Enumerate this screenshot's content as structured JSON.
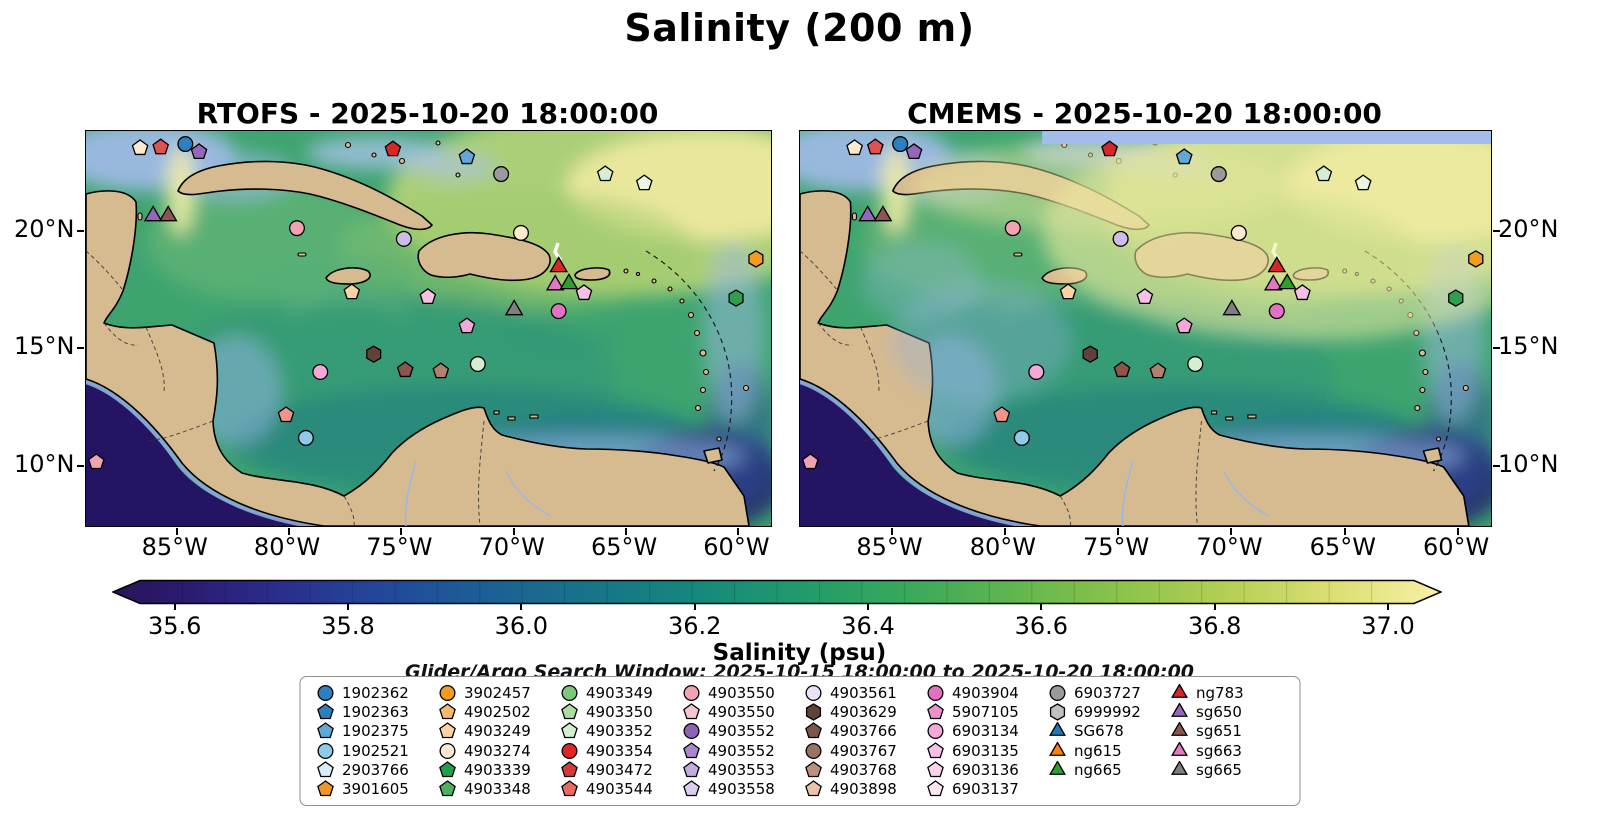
{
  "title": "Salinity (200 m)",
  "panels": [
    {
      "title": "RTOFS - 2025-10-20 18:00:00",
      "model": "RTOFS"
    },
    {
      "title": "CMEMS - 2025-10-20 18:00:00",
      "model": "CMEMS"
    }
  ],
  "axes": {
    "xticks": [
      {
        "label": "85°W",
        "f": 0.131
      },
      {
        "label": "80°W",
        "f": 0.295
      },
      {
        "label": "75°W",
        "f": 0.459
      },
      {
        "label": "70°W",
        "f": 0.623
      },
      {
        "label": "65°W",
        "f": 0.787
      },
      {
        "label": "60°W",
        "f": 0.951
      }
    ],
    "yticks": [
      {
        "label": "20°N",
        "f": 0.25
      },
      {
        "label": "15°N",
        "f": 0.548
      },
      {
        "label": "10°N",
        "f": 0.845
      }
    ]
  },
  "colorbar": {
    "label": "Salinity (psu)",
    "min": 35.56,
    "max": 37.03,
    "tick_labels": [
      "35.6",
      "35.8",
      "36.0",
      "36.2",
      "36.4",
      "36.6",
      "36.8",
      "37.0"
    ],
    "gradient": [
      {
        "o": 0.0,
        "c": "#2a1458"
      },
      {
        "o": 0.05,
        "c": "#2b1a6e"
      },
      {
        "o": 0.13,
        "c": "#2a2f8e"
      },
      {
        "o": 0.2,
        "c": "#22479b"
      },
      {
        "o": 0.28,
        "c": "#1c5f95"
      },
      {
        "o": 0.36,
        "c": "#177489"
      },
      {
        "o": 0.44,
        "c": "#15887c"
      },
      {
        "o": 0.52,
        "c": "#219b6b"
      },
      {
        "o": 0.6,
        "c": "#3aa95b"
      },
      {
        "o": 0.68,
        "c": "#61b64e"
      },
      {
        "o": 0.76,
        "c": "#8cc34a"
      },
      {
        "o": 0.84,
        "c": "#b5cf55"
      },
      {
        "o": 0.92,
        "c": "#dcdf72"
      },
      {
        "o": 1.0,
        "c": "#f8f0a8"
      }
    ]
  },
  "search_window_text": "Glider/Argo Search Window: 2025-10-15 18:00:00 to 2025-10-20 18:00:00",
  "legend": {
    "columns": [
      [
        {
          "label": "1902362",
          "shape": "circle",
          "color": "#2d7fc0"
        },
        {
          "label": "1902363",
          "shape": "pentagon",
          "color": "#2d7fc0"
        },
        {
          "label": "1902375",
          "shape": "pentagon",
          "color": "#62a8d6"
        },
        {
          "label": "1902521",
          "shape": "circle",
          "color": "#8fcae8"
        },
        {
          "label": "2903766",
          "shape": "pentagon",
          "color": "#d8edf8"
        },
        {
          "label": "3901605",
          "shape": "pentagon",
          "color": "#f0952c"
        }
      ],
      [
        {
          "label": "3902457",
          "shape": "circle",
          "color": "#f39c1f"
        },
        {
          "label": "4902502",
          "shape": "pentagon",
          "color": "#f6b96e"
        },
        {
          "label": "4903249",
          "shape": "pentagon",
          "color": "#f9d4a0"
        },
        {
          "label": "4903274",
          "shape": "circle",
          "color": "#fcead0"
        },
        {
          "label": "4903339",
          "shape": "pentagon",
          "color": "#1f9e4b"
        },
        {
          "label": "4903348",
          "shape": "pentagon",
          "color": "#4fae63"
        }
      ],
      [
        {
          "label": "4903349",
          "shape": "circle",
          "color": "#7bc87d"
        },
        {
          "label": "4903350",
          "shape": "pentagon",
          "color": "#aadca4"
        },
        {
          "label": "4903352",
          "shape": "pentagon",
          "color": "#d4efcf"
        },
        {
          "label": "4903354",
          "shape": "circle",
          "color": "#e02427"
        },
        {
          "label": "4903472",
          "shape": "pentagon",
          "color": "#d43a3c"
        },
        {
          "label": "4903544",
          "shape": "pentagon",
          "color": "#e96a60"
        }
      ],
      [
        {
          "label": "4903550",
          "shape": "circle",
          "color": "#f2a3b3"
        },
        {
          "label": "4903550",
          "shape": "pentagon",
          "color": "#f7c6d3"
        },
        {
          "label": "4903552",
          "shape": "circle",
          "color": "#8e63b5"
        },
        {
          "label": "4903552",
          "shape": "pentagon",
          "color": "#a988cb"
        },
        {
          "label": "4903553",
          "shape": "pentagon",
          "color": "#c3abdd"
        },
        {
          "label": "4903558",
          "shape": "pentagon",
          "color": "#dccdee"
        }
      ],
      [
        {
          "label": "4903561",
          "shape": "circle",
          "color": "#ece2f6"
        },
        {
          "label": "4903629",
          "shape": "hexagon",
          "color": "#5f4339"
        },
        {
          "label": "4903766",
          "shape": "pentagon",
          "color": "#7d564a"
        },
        {
          "label": "4903767",
          "shape": "circle",
          "color": "#9b7162"
        },
        {
          "label": "4903768",
          "shape": "pentagon",
          "color": "#c0907e"
        },
        {
          "label": "4903898",
          "shape": "pentagon",
          "color": "#eac3ab"
        }
      ],
      [
        {
          "label": "4903904",
          "shape": "circle",
          "color": "#e171c1"
        },
        {
          "label": "5907105",
          "shape": "pentagon",
          "color": "#ee8fd0"
        },
        {
          "label": "6903134",
          "shape": "circle",
          "color": "#f4a8da"
        },
        {
          "label": "6903135",
          "shape": "pentagon",
          "color": "#f8c0e4"
        },
        {
          "label": "6903136",
          "shape": "pentagon",
          "color": "#fbd4ec"
        },
        {
          "label": "6903137",
          "shape": "pentagon",
          "color": "#fde6f4"
        }
      ],
      [
        {
          "label": "6903727",
          "shape": "circle",
          "color": "#9a9a9a"
        },
        {
          "label": "6999992",
          "shape": "hexagon",
          "color": "#c0c0c0"
        },
        {
          "label": "SG678",
          "shape": "triangle",
          "color": "#1f77b4"
        },
        {
          "label": "ng615",
          "shape": "triangle",
          "color": "#ff7f0e"
        },
        {
          "label": "ng665",
          "shape": "triangle",
          "color": "#2ca02c"
        }
      ],
      [
        {
          "label": "ng783",
          "shape": "triangle",
          "color": "#d62728"
        },
        {
          "label": "sg650",
          "shape": "triangle",
          "color": "#9467bd"
        },
        {
          "label": "sg651",
          "shape": "triangle",
          "color": "#8c564b"
        },
        {
          "label": "sg663",
          "shape": "triangle",
          "color": "#e377c2"
        },
        {
          "label": "sg665",
          "shape": "triangle",
          "color": "#7f7f7f"
        }
      ]
    ]
  },
  "chart_data": {
    "type": "heatmap",
    "subtype": "filled-contour geographic map comparison (2 panels)",
    "variable": "Salinity",
    "depth_m": 200,
    "units": "psu",
    "panels": [
      {
        "model": "RTOFS",
        "valid_time": "2025-10-20 18:00:00"
      },
      {
        "model": "CMEMS",
        "valid_time": "2025-10-20 18:00:00"
      }
    ],
    "extent": {
      "lon_west": 89.0,
      "lon_east": 58.5,
      "lat_south": 7.4,
      "lat_north": 24.2
    },
    "colorbar_range": {
      "min": 35.56,
      "max": 37.03,
      "ticks": [
        35.6,
        35.8,
        36.0,
        36.2,
        36.4,
        36.6,
        36.8,
        37.0
      ]
    },
    "colormap": "haline-like (dark indigo > blue > teal > green > pale yellow)",
    "search_window": {
      "start": "2025-10-15 18:00:00",
      "end": "2025-10-20 18:00:00"
    },
    "region": "Caribbean Sea / Gulf of Mexico / Tropical Atlantic",
    "observed_markers": [
      {
        "fx": 0.079,
        "fy": 0.043,
        "lon_w": 86.6,
        "lat_n": 23.5,
        "shape": "pentagon",
        "color": "#fcead0"
      },
      {
        "fx": 0.109,
        "fy": 0.041,
        "lon_w": 85.7,
        "lat_n": 23.5,
        "shape": "pentagon",
        "color": "#e05252"
      },
      {
        "fx": 0.145,
        "fy": 0.033,
        "lon_w": 84.6,
        "lat_n": 23.6,
        "shape": "circle",
        "color": "#2d7fc0"
      },
      {
        "fx": 0.165,
        "fy": 0.053,
        "lon_w": 84.0,
        "lat_n": 23.3,
        "shape": "pentagon",
        "color": "#9467bd"
      },
      {
        "fx": 0.448,
        "fy": 0.046,
        "lon_w": 75.3,
        "lat_n": 23.4,
        "shape": "pentagon",
        "color": "#d62728"
      },
      {
        "fx": 0.556,
        "fy": 0.066,
        "lon_w": 72.0,
        "lat_n": 23.1,
        "shape": "pentagon",
        "color": "#62a8d6"
      },
      {
        "fx": 0.606,
        "fy": 0.109,
        "lon_w": 70.5,
        "lat_n": 22.4,
        "shape": "circle",
        "color": "#9a9a9a"
      },
      {
        "fx": 0.758,
        "fy": 0.109,
        "lon_w": 65.9,
        "lat_n": 22.4,
        "shape": "pentagon",
        "color": "#d4efcf"
      },
      {
        "fx": 0.815,
        "fy": 0.132,
        "lon_w": 64.2,
        "lat_n": 22.0,
        "shape": "pentagon",
        "color": "#eaf6e2"
      },
      {
        "fx": 0.098,
        "fy": 0.215,
        "lon_w": 86.0,
        "lat_n": 20.6,
        "shape": "triangle",
        "color": "#9467bd",
        "platform": "sg650"
      },
      {
        "fx": 0.12,
        "fy": 0.215,
        "lon_w": 85.4,
        "lat_n": 20.6,
        "shape": "triangle",
        "color": "#8c564b",
        "platform": "sg651"
      },
      {
        "fx": 0.308,
        "fy": 0.246,
        "lon_w": 79.6,
        "lat_n": 20.1,
        "shape": "circle",
        "color": "#f2a3b3"
      },
      {
        "fx": 0.464,
        "fy": 0.273,
        "lon_w": 74.8,
        "lat_n": 19.6,
        "shape": "circle",
        "color": "#cdbce8"
      },
      {
        "fx": 0.635,
        "fy": 0.258,
        "lon_w": 69.6,
        "lat_n": 19.9,
        "shape": "circle",
        "color": "#fcead0"
      },
      {
        "fx": 0.69,
        "fy": 0.344,
        "lon_w": 67.9,
        "lat_n": 18.4,
        "shape": "triangle",
        "color": "#d62728",
        "platform": "ng783"
      },
      {
        "fx": 0.978,
        "fy": 0.324,
        "lon_w": 59.2,
        "lat_n": 18.8,
        "shape": "hexagon",
        "color": "#f39c1f"
      },
      {
        "fx": 0.388,
        "fy": 0.408,
        "lon_w": 77.2,
        "lat_n": 17.3,
        "shape": "pentagon",
        "color": "#f9d4a0"
      },
      {
        "fx": 0.499,
        "fy": 0.42,
        "lon_w": 73.8,
        "lat_n": 17.1,
        "shape": "pentagon",
        "color": "#f8c0e4"
      },
      {
        "fx": 0.685,
        "fy": 0.39,
        "lon_w": 68.1,
        "lat_n": 17.6,
        "shape": "triangle",
        "color": "#e377c2",
        "platform": "sg663"
      },
      {
        "fx": 0.705,
        "fy": 0.387,
        "lon_w": 67.5,
        "lat_n": 17.7,
        "shape": "triangle",
        "color": "#2ca02c",
        "platform": "ng665"
      },
      {
        "fx": 0.727,
        "fy": 0.41,
        "lon_w": 66.8,
        "lat_n": 17.3,
        "shape": "pentagon",
        "color": "#f8c0e4"
      },
      {
        "fx": 0.625,
        "fy": 0.453,
        "lon_w": 69.9,
        "lat_n": 16.6,
        "shape": "triangle",
        "color": "#7f7f7f",
        "platform": "sg665"
      },
      {
        "fx": 0.69,
        "fy": 0.456,
        "lon_w": 67.9,
        "lat_n": 16.5,
        "shape": "circle",
        "color": "#e171c1"
      },
      {
        "fx": 0.949,
        "fy": 0.423,
        "lon_w": 60.1,
        "lat_n": 17.1,
        "shape": "hexagon",
        "color": "#2e9e4f"
      },
      {
        "fx": 0.556,
        "fy": 0.494,
        "lon_w": 72.0,
        "lat_n": 15.9,
        "shape": "pentagon",
        "color": "#f4a8da"
      },
      {
        "fx": 0.42,
        "fy": 0.565,
        "lon_w": 76.2,
        "lat_n": 14.7,
        "shape": "hexagon",
        "color": "#5f4339"
      },
      {
        "fx": 0.572,
        "fy": 0.59,
        "lon_w": 71.5,
        "lat_n": 14.3,
        "shape": "circle",
        "color": "#d4efcf"
      },
      {
        "fx": 0.342,
        "fy": 0.61,
        "lon_w": 78.6,
        "lat_n": 13.9,
        "shape": "circle",
        "color": "#f4a8da"
      },
      {
        "fx": 0.466,
        "fy": 0.605,
        "lon_w": 74.8,
        "lat_n": 14.0,
        "shape": "pentagon",
        "color": "#8c564b"
      },
      {
        "fx": 0.518,
        "fy": 0.608,
        "lon_w": 73.2,
        "lat_n": 14.0,
        "shape": "pentagon",
        "color": "#b08070"
      },
      {
        "fx": 0.292,
        "fy": 0.719,
        "lon_w": 80.1,
        "lat_n": 12.1,
        "shape": "pentagon",
        "color": "#f1948a"
      },
      {
        "fx": 0.321,
        "fy": 0.777,
        "lon_w": 79.2,
        "lat_n": 11.1,
        "shape": "circle",
        "color": "#8fcae8"
      },
      {
        "fx": 0.015,
        "fy": 0.838,
        "lon_w": 88.6,
        "lat_n": 10.1,
        "shape": "pentagon",
        "color": "#f2a3b3"
      }
    ]
  }
}
